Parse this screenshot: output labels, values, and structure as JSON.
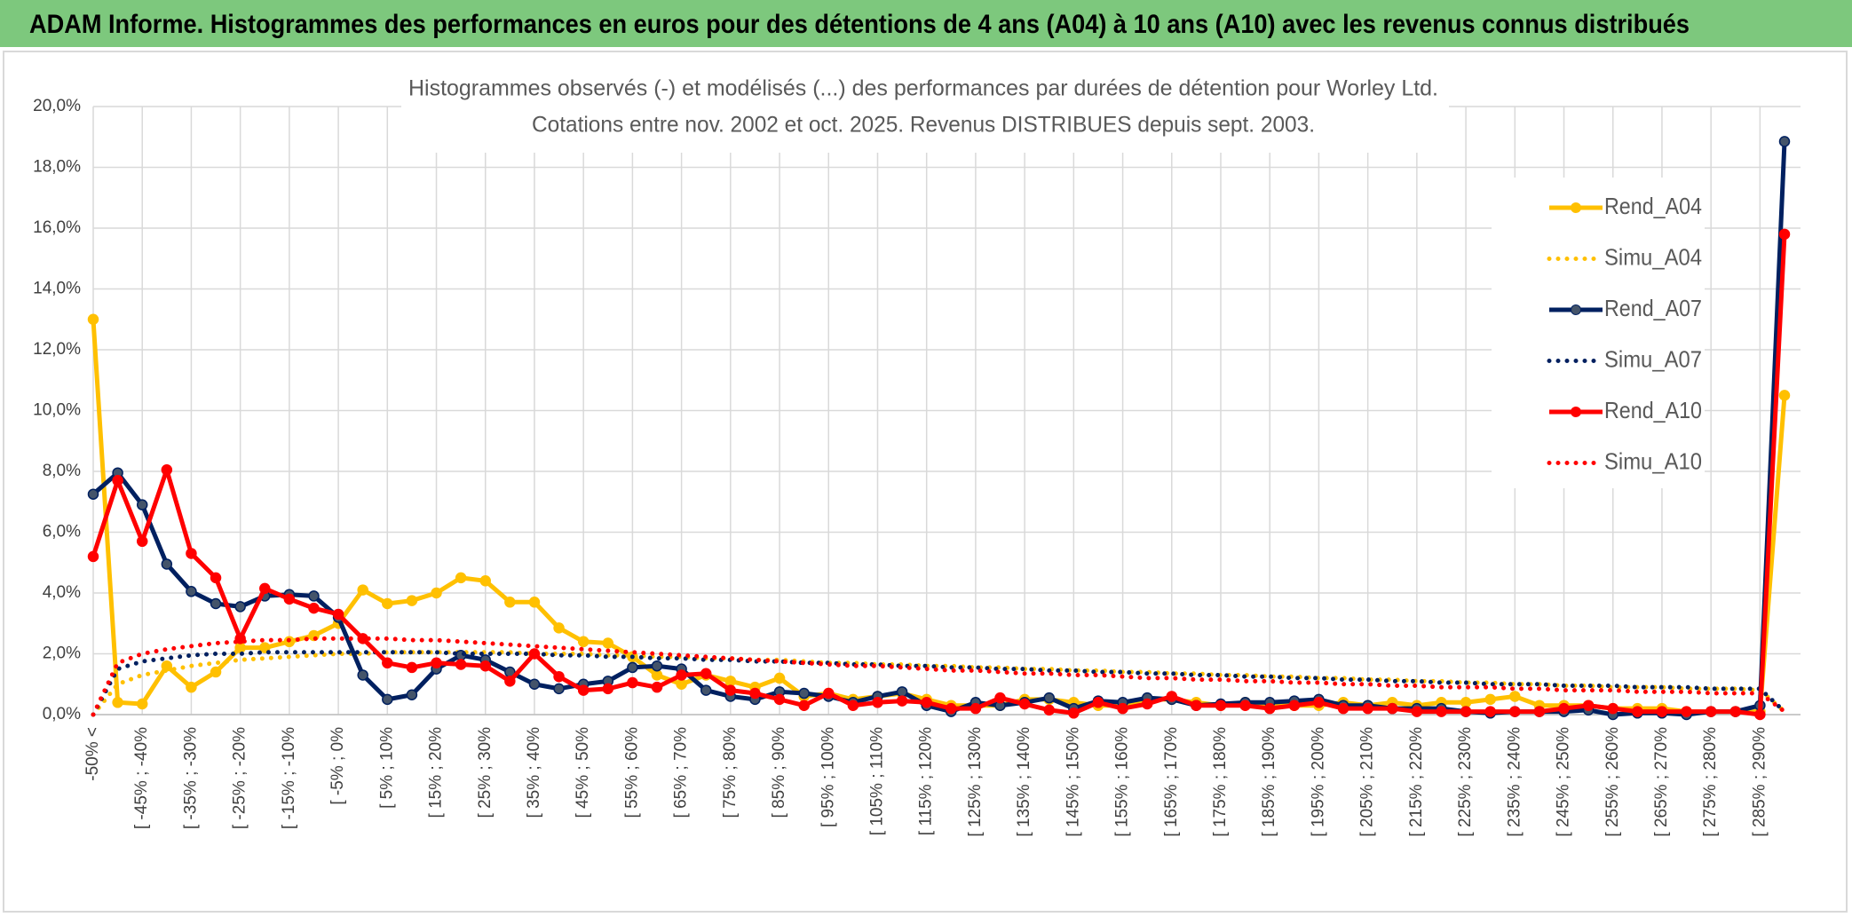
{
  "header": "ADAM Informe. Histogrammes des performances en euros pour des détentions de 4 ans (A04) à 10 ans (A10) avec les revenus connus distribués",
  "chart_data": {
    "type": "line",
    "title": "Histogrammes observés (-) et modélisés (...) des performances par durées de détention pour Worley Ltd.",
    "subtitle": "Cotations entre nov. 2002 et oct. 2025. Revenus DISTRIBUES depuis sept. 2003.",
    "categories": [
      "-50% <",
      null,
      "[ -45% ; -40%",
      null,
      "[ -35% ; -30%",
      null,
      "[ -25% ; -20%",
      null,
      "[ -15% ; -10%",
      null,
      "[ -5% ; 0%",
      null,
      "[ 5% ; 10%",
      null,
      "[ 15% ; 20%",
      null,
      "[ 25% ; 30%",
      null,
      "[ 35% ; 40%",
      null,
      "[ 45% ; 50%",
      null,
      "[ 55% ; 60%",
      null,
      "[ 65% ; 70%",
      null,
      "[ 75% ; 80%",
      null,
      "[ 85% ; 90%",
      null,
      "[ 95% ; 100%",
      null,
      "[ 105% ; 110%",
      null,
      "[ 115% ; 120%",
      null,
      "[ 125% ; 130%",
      null,
      "[ 135% ; 140%",
      null,
      "[ 145% ; 150%",
      null,
      "[ 155% ; 160%",
      null,
      "[ 165% ; 170%",
      null,
      "[ 175% ; 180%",
      null,
      "[ 185% ; 190%",
      null,
      "[ 195% ; 200%",
      null,
      "[ 205% ; 210%",
      null,
      "[ 215% ; 220%",
      null,
      "[ 225% ; 230%",
      null,
      "[ 235% ; 240%",
      null,
      "[ 245% ; 250%",
      null,
      "[ 255% ; 260%",
      null,
      "[ 265% ; 270%",
      null,
      "[ 275% ; 280%",
      null,
      "[ 285% ; 290%",
      null
    ],
    "series": [
      {
        "name": "Rend_A04",
        "color": "#ffc000",
        "style": "solid",
        "marker": true,
        "values": [
          13.0,
          0.4,
          0.35,
          1.6,
          0.9,
          1.4,
          2.2,
          2.2,
          2.4,
          2.6,
          3.0,
          4.1,
          3.65,
          3.75,
          4.0,
          4.5,
          4.4,
          3.7,
          3.7,
          2.85,
          2.4,
          2.35,
          1.9,
          1.3,
          1.0,
          1.3,
          1.1,
          0.9,
          1.2,
          0.6,
          0.7,
          0.5,
          0.6,
          0.7,
          0.5,
          0.3,
          0.3,
          0.3,
          0.5,
          0.5,
          0.4,
          0.3,
          0.3,
          0.5,
          0.5,
          0.4,
          0.3,
          0.4,
          0.3,
          0.3,
          0.3,
          0.4,
          0.3,
          0.4,
          0.3,
          0.4,
          0.4,
          0.5,
          0.6,
          0.3,
          0.3,
          0.3,
          0.2,
          0.2,
          0.2,
          0.1,
          0.1,
          0.1,
          0.1,
          10.5
        ]
      },
      {
        "name": "Simu_A04",
        "color": "#ffc000",
        "style": "dotted",
        "marker": false,
        "values": [
          0,
          1.0,
          1.3,
          1.45,
          1.6,
          1.7,
          1.8,
          1.85,
          1.9,
          1.95,
          2.0,
          2.0,
          2.05,
          2.05,
          2.05,
          2.05,
          2.05,
          2.05,
          2.0,
          2.0,
          2.0,
          1.95,
          1.95,
          1.9,
          1.9,
          1.85,
          1.85,
          1.8,
          1.8,
          1.75,
          1.7,
          1.7,
          1.65,
          1.65,
          1.6,
          1.6,
          1.55,
          1.55,
          1.5,
          1.5,
          1.45,
          1.45,
          1.4,
          1.4,
          1.35,
          1.35,
          1.3,
          1.3,
          1.25,
          1.25,
          1.2,
          1.2,
          1.15,
          1.15,
          1.1,
          1.1,
          1.05,
          1.05,
          1.0,
          1.0,
          0.95,
          0.95,
          0.9,
          0.9,
          0.9,
          0.85,
          0.85,
          0.85,
          0.8,
          0.1
        ]
      },
      {
        "name": "Rend_A07",
        "color": "#002060",
        "style": "solid",
        "marker": true,
        "values": [
          7.25,
          7.95,
          6.9,
          4.95,
          4.05,
          3.65,
          3.55,
          3.9,
          3.95,
          3.9,
          3.2,
          1.3,
          0.5,
          0.65,
          1.5,
          1.95,
          1.8,
          1.4,
          1.0,
          0.85,
          1.0,
          1.1,
          1.55,
          1.6,
          1.5,
          0.8,
          0.6,
          0.5,
          0.75,
          0.7,
          0.6,
          0.4,
          0.6,
          0.75,
          0.3,
          0.1,
          0.4,
          0.3,
          0.4,
          0.55,
          0.2,
          0.45,
          0.4,
          0.55,
          0.5,
          0.3,
          0.35,
          0.4,
          0.4,
          0.45,
          0.5,
          0.3,
          0.3,
          0.2,
          0.2,
          0.2,
          0.1,
          0.05,
          0.1,
          0.1,
          0.1,
          0.15,
          0,
          0.05,
          0.05,
          0,
          0.1,
          0.1,
          0.3,
          18.85
        ]
      },
      {
        "name": "Simu_A07",
        "color": "#002060",
        "style": "dotted",
        "marker": false,
        "values": [
          0,
          1.5,
          1.75,
          1.85,
          1.95,
          2.0,
          2.0,
          2.05,
          2.05,
          2.05,
          2.05,
          2.05,
          2.05,
          2.05,
          2.05,
          2.0,
          2.0,
          2.0,
          2.0,
          1.95,
          1.95,
          1.9,
          1.9,
          1.85,
          1.85,
          1.8,
          1.8,
          1.75,
          1.75,
          1.7,
          1.7,
          1.65,
          1.65,
          1.6,
          1.6,
          1.55,
          1.55,
          1.5,
          1.5,
          1.45,
          1.45,
          1.4,
          1.4,
          1.35,
          1.35,
          1.3,
          1.3,
          1.25,
          1.25,
          1.2,
          1.2,
          1.15,
          1.15,
          1.1,
          1.1,
          1.05,
          1.05,
          1.0,
          1.0,
          1.0,
          0.95,
          0.95,
          0.95,
          0.9,
          0.9,
          0.9,
          0.85,
          0.85,
          0.85,
          0.1
        ]
      },
      {
        "name": "Rend_A10",
        "color": "#ff0000",
        "style": "solid",
        "marker": true,
        "values": [
          5.2,
          7.7,
          5.7,
          8.05,
          5.3,
          4.5,
          2.5,
          4.15,
          3.8,
          3.5,
          3.3,
          2.5,
          1.7,
          1.55,
          1.7,
          1.65,
          1.6,
          1.1,
          2.0,
          1.25,
          0.8,
          0.85,
          1.05,
          0.9,
          1.3,
          1.35,
          0.8,
          0.7,
          0.5,
          0.3,
          0.7,
          0.3,
          0.4,
          0.45,
          0.4,
          0.2,
          0.2,
          0.55,
          0.35,
          0.15,
          0.05,
          0.4,
          0.2,
          0.35,
          0.6,
          0.3,
          0.3,
          0.3,
          0.2,
          0.3,
          0.4,
          0.2,
          0.2,
          0.2,
          0.1,
          0.1,
          0.1,
          0.1,
          0.1,
          0.1,
          0.2,
          0.3,
          0.2,
          0.1,
          0.1,
          0.1,
          0.1,
          0.1,
          0.0,
          15.8
        ]
      },
      {
        "name": "Simu_A10",
        "color": "#ff0000",
        "style": "dotted",
        "marker": false,
        "values": [
          0,
          1.7,
          2.0,
          2.15,
          2.25,
          2.35,
          2.4,
          2.45,
          2.45,
          2.5,
          2.5,
          2.5,
          2.5,
          2.45,
          2.45,
          2.4,
          2.35,
          2.3,
          2.25,
          2.2,
          2.15,
          2.1,
          2.05,
          2.0,
          1.95,
          1.9,
          1.85,
          1.8,
          1.75,
          1.7,
          1.65,
          1.6,
          1.6,
          1.55,
          1.5,
          1.45,
          1.45,
          1.4,
          1.35,
          1.35,
          1.3,
          1.3,
          1.25,
          1.2,
          1.2,
          1.15,
          1.15,
          1.1,
          1.1,
          1.05,
          1.05,
          1.0,
          1.0,
          0.95,
          0.95,
          0.9,
          0.9,
          0.9,
          0.85,
          0.85,
          0.8,
          0.8,
          0.8,
          0.75,
          0.75,
          0.75,
          0.7,
          0.7,
          0.7,
          0.1
        ]
      }
    ],
    "ylim": [
      0,
      20
    ],
    "yticks": [
      {
        "value": 0,
        "label": "0,0%"
      },
      {
        "value": 2,
        "label": "2,0%"
      },
      {
        "value": 4,
        "label": "4,0%"
      },
      {
        "value": 6,
        "label": "6,0%"
      },
      {
        "value": 8,
        "label": "8,0%"
      },
      {
        "value": 10,
        "label": "10,0%"
      },
      {
        "value": 12,
        "label": "12,0%"
      },
      {
        "value": 14,
        "label": "14,0%"
      },
      {
        "value": 16,
        "label": "16,0%"
      },
      {
        "value": 18,
        "label": "18,0%"
      },
      {
        "value": 20,
        "label": "20,0%"
      }
    ],
    "grid": true,
    "legend": "right"
  }
}
